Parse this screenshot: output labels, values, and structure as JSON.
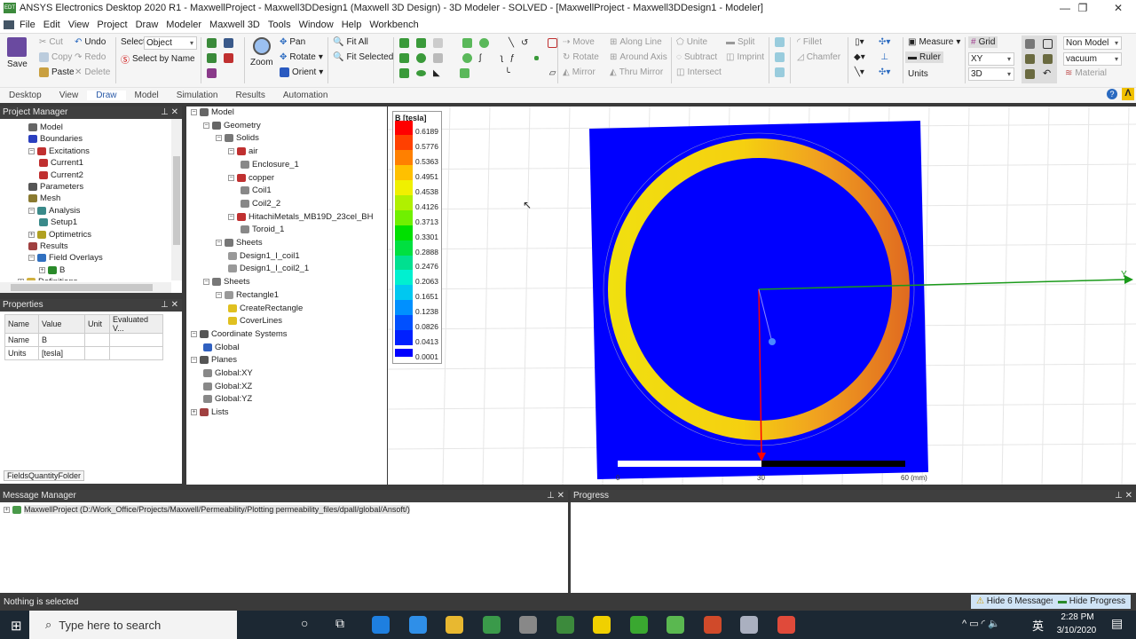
{
  "title": "ANSYS Electronics Desktop 2020 R1 - MaxwellProject - Maxwell3DDesign1 (Maxwell 3D Design) - 3D Modeler - SOLVED - [MaxwellProject - Maxwell3DDesign1 - Modeler]",
  "app_logo": "EDT",
  "menu": [
    "File",
    "Edit",
    "View",
    "Project",
    "Draw",
    "Modeler",
    "Maxwell 3D",
    "Tools",
    "Window",
    "Help",
    "Workbench"
  ],
  "ribbon": {
    "save": "Save",
    "cut": "Cut",
    "copy": "Copy",
    "paste": "Paste",
    "undo": "Undo",
    "redo": "Redo",
    "delete": "Delete",
    "select_label": "Select:",
    "select_value": "Object",
    "select_by_name": "Select by Name",
    "zoom": "Zoom",
    "pan": "Pan",
    "rotate": "Rotate",
    "orient": "Orient",
    "fit_all": "Fit All",
    "fit_selected": "Fit Selected",
    "move": "Move",
    "rotate2": "Rotate",
    "mirror": "Mirror",
    "along_line": "Along Line",
    "around_axis": "Around Axis",
    "thru_mirror": "Thru Mirror",
    "unite": "Unite",
    "subtract": "Subtract",
    "intersect": "Intersect",
    "split": "Split",
    "imprint": "Imprint",
    "fillet": "Fillet",
    "chamfer": "Chamfer",
    "measure": "Measure",
    "ruler": "Ruler",
    "units": "Units",
    "grid": "Grid",
    "plane": "XY",
    "dim": "3D",
    "model_type": "Non Model",
    "material_value": "vacuum",
    "material": "Material"
  },
  "tabs": [
    "Desktop",
    "View",
    "Draw",
    "Model",
    "Simulation",
    "Results",
    "Automation"
  ],
  "active_tab": "Draw",
  "project_manager": {
    "title": "Project Manager",
    "items": [
      {
        "label": "Model",
        "level": 1,
        "color": "#666"
      },
      {
        "label": "Boundaries",
        "level": 1,
        "color": "#2a3fbf"
      },
      {
        "label": "Excitations",
        "level": 1,
        "color": "#c03030",
        "exp": "-"
      },
      {
        "label": "Current1",
        "level": 2,
        "color": "#c03030"
      },
      {
        "label": "Current2",
        "level": 2,
        "color": "#c03030"
      },
      {
        "label": "Parameters",
        "level": 1,
        "color": "#555"
      },
      {
        "label": "Mesh",
        "level": 1,
        "color": "#8a7a30"
      },
      {
        "label": "Analysis",
        "level": 1,
        "color": "#3a8a8a",
        "exp": "-"
      },
      {
        "label": "Setup1",
        "level": 2,
        "color": "#3a8a8a"
      },
      {
        "label": "Optimetrics",
        "level": 1,
        "color": "#b0a020",
        "exp": "+"
      },
      {
        "label": "Results",
        "level": 1,
        "color": "#a04040"
      },
      {
        "label": "Field Overlays",
        "level": 1,
        "color": "#3070c0",
        "exp": "-"
      },
      {
        "label": "B",
        "level": 2,
        "color": "#2a8a2a",
        "exp": "+"
      },
      {
        "label": "Definitions",
        "level": 0,
        "color": "#d0b040",
        "exp": "+"
      }
    ]
  },
  "properties": {
    "title": "Properties",
    "headers": [
      "Name",
      "Value",
      "Unit",
      "Evaluated V..."
    ],
    "rows": [
      [
        "Name",
        "B",
        "",
        ""
      ],
      [
        "Units",
        "[tesla]",
        "",
        ""
      ]
    ],
    "footer": "FieldsQuantityFolder"
  },
  "model_tree": [
    {
      "label": "Model",
      "level": 0,
      "exp": "-",
      "color": "#666"
    },
    {
      "label": "Geometry",
      "level": 1,
      "exp": "-",
      "color": "#666"
    },
    {
      "label": "Solids",
      "level": 2,
      "exp": "-",
      "color": "#777"
    },
    {
      "label": "air",
      "level": 3,
      "exp": "-",
      "color": "#c03030"
    },
    {
      "label": "Enclosure_1",
      "level": 4,
      "color": "#888"
    },
    {
      "label": "copper",
      "level": 3,
      "exp": "-",
      "color": "#c03030"
    },
    {
      "label": "Coil1",
      "level": 4,
      "color": "#888"
    },
    {
      "label": "Coil2_2",
      "level": 4,
      "color": "#888"
    },
    {
      "label": "HitachiMetals_MB19D_23cel_BH",
      "level": 3,
      "exp": "-",
      "color": "#c03030"
    },
    {
      "label": "Toroid_1",
      "level": 4,
      "color": "#888"
    },
    {
      "label": "Sheets",
      "level": 2,
      "exp": "-",
      "color": "#777"
    },
    {
      "label": "Design1_I_coil1",
      "level": 3,
      "color": "#999"
    },
    {
      "label": "Design1_I_coil2_1",
      "level": 3,
      "color": "#999"
    },
    {
      "label": "Sheets",
      "level": 1,
      "exp": "-",
      "color": "#777"
    },
    {
      "label": "Rectangle1",
      "level": 2,
      "exp": "-",
      "color": "#999"
    },
    {
      "label": "CreateRectangle",
      "level": 3,
      "color": "#e0c020"
    },
    {
      "label": "CoverLines",
      "level": 3,
      "color": "#e0c020"
    },
    {
      "label": "Coordinate Systems",
      "level": 0,
      "exp": "-",
      "color": "#555"
    },
    {
      "label": "Global",
      "level": 1,
      "color": "#3060c0"
    },
    {
      "label": "Planes",
      "level": 0,
      "exp": "-",
      "color": "#555"
    },
    {
      "label": "Global:XY",
      "level": 1,
      "color": "#888"
    },
    {
      "label": "Global:XZ",
      "level": 1,
      "color": "#888"
    },
    {
      "label": "Global:YZ",
      "level": 1,
      "color": "#888"
    },
    {
      "label": "Lists",
      "level": 0,
      "exp": "+",
      "color": "#a04040"
    }
  ],
  "legend": {
    "title": "B [tesla]",
    "values": [
      "0.6189",
      "0.5776",
      "0.5363",
      "0.4951",
      "0.4538",
      "0.4126",
      "0.3713",
      "0.3301",
      "0.2888",
      "0.2476",
      "0.2063",
      "0.1651",
      "0.1238",
      "0.0826",
      "0.0413",
      "0.0001"
    ],
    "colors": [
      "#ff0000",
      "#ff4000",
      "#ff8000",
      "#ffc000",
      "#f0f000",
      "#b0f000",
      "#70f000",
      "#00e000",
      "#00e040",
      "#00e090",
      "#00f0d0",
      "#00c8f0",
      "#0090ff",
      "#0050ff",
      "#0020ff",
      "#0000ff"
    ]
  },
  "scale": {
    "ticks": [
      "0",
      "30",
      "60 (mm)"
    ]
  },
  "axis_label": "Y",
  "message_manager": {
    "title": "Message Manager",
    "entry": "MaxwellProject (D:/Work_Office/Projects/Maxwell/Permeability/Plotting permeability_files/dpall/global/Ansoft/)"
  },
  "progress": {
    "title": "Progress"
  },
  "status": {
    "text": "Nothing is selected",
    "hide_messages": "Hide 6 Messages",
    "hide_progress": "Hide Progress"
  },
  "taskbar": {
    "search_placeholder": "Type here to search",
    "time": "2:28 PM",
    "date": "3/10/2020",
    "ime": "英",
    "apps": [
      {
        "name": "kaspersky",
        "color": "#1e7fe0"
      },
      {
        "name": "calendar",
        "color": "#2f8fe8"
      },
      {
        "name": "file-explorer",
        "color": "#e8b830"
      },
      {
        "name": "chrome",
        "color": "#3a9a4a"
      },
      {
        "name": "workbench",
        "color": "#888"
      },
      {
        "name": "edt",
        "color": "#3c8a3c"
      },
      {
        "name": "sticky-notes",
        "color": "#f0d000"
      },
      {
        "name": "camtasia",
        "color": "#3aa830"
      },
      {
        "name": "wechat",
        "color": "#5ab850"
      },
      {
        "name": "powerpoint",
        "color": "#d04a2a"
      },
      {
        "name": "snipping",
        "color": "#aab0c0"
      },
      {
        "name": "camtasia-recorder",
        "color": "#e04a3a"
      }
    ]
  }
}
